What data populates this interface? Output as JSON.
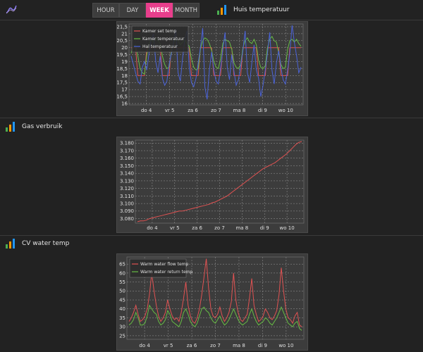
{
  "topbar": {
    "range_buttons": [
      "HOUR",
      "DAY",
      "WEEK",
      "MONTH"
    ],
    "active": "WEEK",
    "logo_icon": "trend-line-icon"
  },
  "colors": {
    "accent": "#e83e8c",
    "bar_green": "#4caf50",
    "bar_orange": "#ff9800",
    "bar_blue": "#2196f3"
  },
  "sections": [
    {
      "title": "Huis temperatuur",
      "icon": "bar-chart-icon"
    },
    {
      "title": "Gas verbruik",
      "icon": "bar-chart-icon"
    },
    {
      "title": "CV water temp",
      "icon": "bar-chart-icon"
    }
  ],
  "chart_data": [
    {
      "type": "line",
      "x_tick_labels": [
        "do 4",
        "vr 5",
        "za 6",
        "zo 7",
        "ma 8",
        "di 9",
        "wo 10"
      ],
      "y_tick_labels": [
        "16",
        "16,5",
        "17",
        "17,5",
        "18",
        "18,5",
        "19",
        "19,5",
        "20",
        "20,5",
        "21",
        "21,5"
      ],
      "ylim": [
        15.9,
        21.7
      ],
      "grid": true,
      "legend_position": "top-left",
      "series": [
        {
          "name": "Kamer set temp",
          "color": "#e05252",
          "values": [
            20,
            20,
            20,
            18,
            18,
            18,
            18,
            20,
            20,
            20,
            20,
            20,
            20,
            20,
            18,
            18,
            18,
            18,
            20,
            20,
            20,
            20,
            20,
            20,
            20,
            20,
            20,
            18,
            18,
            18,
            18,
            20,
            20,
            20,
            20,
            20,
            20,
            18,
            18,
            18,
            18,
            20,
            20,
            20,
            20,
            20,
            18,
            18,
            18,
            18,
            20,
            20,
            20,
            20,
            20,
            20,
            20,
            18,
            18,
            18,
            18,
            20,
            20,
            20,
            20,
            20,
            20,
            18,
            18,
            18,
            18,
            20,
            20,
            20,
            20,
            20,
            20
          ]
        },
        {
          "name": "Kamer temperatuur",
          "color": "#66bb44",
          "values": [
            19.6,
            20.1,
            20.2,
            19.4,
            18.5,
            18.2,
            18.1,
            19.5,
            20.3,
            20.6,
            20.4,
            20.7,
            20.5,
            20.3,
            19.4,
            18.8,
            18.5,
            18.6,
            19.8,
            20.4,
            20.6,
            20.5,
            20.2,
            20.4,
            20.6,
            20.3,
            20.1,
            19.2,
            18.6,
            18.4,
            18.5,
            19.9,
            20.5,
            20.7,
            20.6,
            20.3,
            19.8,
            19.0,
            18.6,
            18.5,
            19.2,
            20.3,
            20.6,
            20.5,
            20.4,
            19.9,
            18.9,
            18.6,
            18.5,
            18.8,
            20.0,
            20.5,
            20.7,
            20.4,
            20.3,
            20.6,
            20.2,
            19.1,
            18.6,
            18.5,
            18.7,
            20.0,
            20.6,
            20.8,
            20.5,
            20.4,
            19.6,
            18.8,
            18.5,
            18.6,
            19.9,
            20.5,
            20.6,
            20.4,
            20.6,
            20.3,
            20.1
          ]
        },
        {
          "name": "Hal temperatuur",
          "color": "#4b63d8",
          "values": [
            19.4,
            18.8,
            18.2,
            17.6,
            17.4,
            18.6,
            19.0,
            18.4,
            19.6,
            20.6,
            21.0,
            19.0,
            18.2,
            19.4,
            17.8,
            17.3,
            17.6,
            18.8,
            19.6,
            20.4,
            21.3,
            18.2,
            17.6,
            19.2,
            20.6,
            21.2,
            18.6,
            17.5,
            17.2,
            17.8,
            18.9,
            20.0,
            21.4,
            17.2,
            16.3,
            18.4,
            19.7,
            18.4,
            17.6,
            17.4,
            18.5,
            19.8,
            21.1,
            18.6,
            17.7,
            19.5,
            18.3,
            17.3,
            17.7,
            18.7,
            19.8,
            21.2,
            18.2,
            17.5,
            18.9,
            20.2,
            18.4,
            17.8,
            16.5,
            17.3,
            18.4,
            19.6,
            21.1,
            18.4,
            17.4,
            18.9,
            19.8,
            18.6,
            17.7,
            17.4,
            18.4,
            19.6,
            21.6,
            20.4,
            19.4,
            18.2,
            18.6
          ]
        }
      ]
    },
    {
      "type": "line",
      "x_tick_labels": [
        "do 4",
        "vr 5",
        "za 6",
        "zo 7",
        "ma 8",
        "di 9",
        "wo 10"
      ],
      "y_tick_labels": [
        "3.080",
        "3.090",
        "3.100",
        "3.110",
        "3.120",
        "3.130",
        "3.140",
        "3.150",
        "3.160",
        "3.170",
        "3.180"
      ],
      "ylim": [
        3.074,
        3.184
      ],
      "grid": true,
      "series": [
        {
          "color": "#e05252",
          "values": [
            3.076,
            3.077,
            3.077,
            3.078,
            3.08,
            3.081,
            3.082,
            3.083,
            3.084,
            3.085,
            3.086,
            3.087,
            3.088,
            3.089,
            3.09,
            3.09,
            3.091,
            3.092,
            3.093,
            3.094,
            3.095,
            3.096,
            3.097,
            3.098,
            3.099,
            3.101,
            3.102,
            3.104,
            3.106,
            3.108,
            3.11,
            3.113,
            3.116,
            3.119,
            3.122,
            3.125,
            3.128,
            3.131,
            3.134,
            3.137,
            3.14,
            3.143,
            3.146,
            3.148,
            3.15,
            3.152,
            3.154,
            3.157,
            3.16,
            3.163,
            3.166,
            3.17,
            3.174,
            3.178,
            3.181,
            3.182
          ]
        }
      ]
    },
    {
      "type": "line",
      "x_tick_labels": [
        "do 4",
        "vr 5",
        "za 6",
        "zo 7",
        "ma 8",
        "di 9",
        "wo 10"
      ],
      "y_tick_labels": [
        "25",
        "30",
        "35",
        "40",
        "45",
        "50",
        "55",
        "60",
        "65"
      ],
      "ylim": [
        23,
        69
      ],
      "grid": true,
      "legend_position": "top-left",
      "series": [
        {
          "name": "Warm water flow temp",
          "color": "#e05252",
          "values": [
            33,
            35,
            38,
            42,
            37,
            33,
            34,
            36,
            40,
            48,
            60,
            50,
            42,
            36,
            33,
            35,
            38,
            45,
            40,
            36,
            34,
            35,
            33,
            38,
            46,
            55,
            42,
            36,
            33,
            32,
            35,
            40,
            48,
            58,
            68,
            52,
            40,
            36,
            35,
            37,
            41,
            36,
            33,
            35,
            38,
            44,
            60,
            45,
            38,
            34,
            33,
            35,
            37,
            46,
            57,
            42,
            37,
            33,
            34,
            36,
            40,
            38,
            35,
            34,
            36,
            39,
            48,
            63,
            50,
            40,
            35,
            34,
            32,
            36,
            38,
            31,
            30
          ]
        },
        {
          "name": "Warm water return temp",
          "color": "#66bb44",
          "values": [
            31,
            32,
            34,
            38,
            35,
            31,
            31,
            32,
            36,
            42,
            40,
            38,
            37,
            33,
            31,
            32,
            34,
            39,
            37,
            33,
            32,
            31,
            30,
            33,
            38,
            40,
            37,
            33,
            31,
            30,
            32,
            36,
            40,
            41,
            39,
            38,
            35,
            33,
            32,
            34,
            36,
            33,
            31,
            32,
            34,
            37,
            40,
            37,
            34,
            32,
            31,
            32,
            33,
            37,
            40,
            36,
            33,
            31,
            32,
            33,
            35,
            34,
            32,
            31,
            33,
            35,
            38,
            41,
            38,
            35,
            32,
            31,
            30,
            32,
            33,
            29,
            28
          ]
        }
      ]
    }
  ]
}
